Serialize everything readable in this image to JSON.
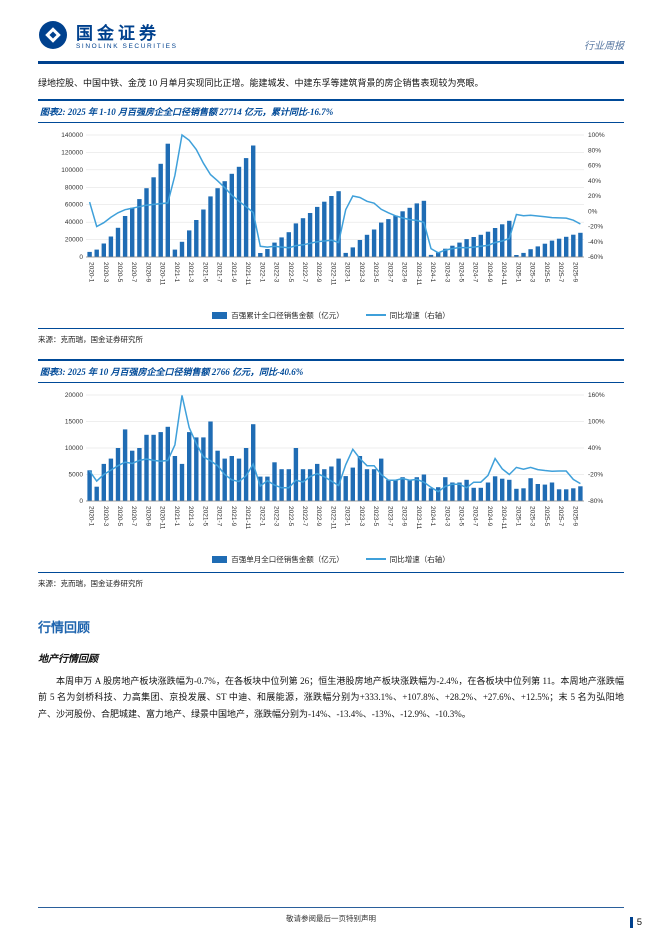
{
  "header": {
    "brand_cn": "国金证券",
    "brand_en": "SINOLINK SECURITIES",
    "report_type": "行业周报"
  },
  "intro": "绿地控股、中国中铁、金茂 10 月单月实现同比正增。能建城发、中建东孚等建筑背景的房企销售表现较为亮眼。",
  "figures": [
    {
      "source": "来源：克而瑞，国金证券研究所"
    },
    {
      "source": "来源：克而瑞，国金证券研究所"
    }
  ],
  "market_review": {
    "title": "行情回顾",
    "subtitle": "地产行情回顾",
    "paragraph": "本周申万 A 股房地产板块涨跌幅为-0.7%，在各板块中位列第 26；恒生港股房地产板块涨跌幅为-2.4%，在各板块中位列第 11。本周地产涨跌幅前 5 名为剑桥科技、力高集团、京投发展、ST 中迪、和展能源，涨跌幅分别为+333.1%、+107.8%、+28.2%、+27.6%、+12.5%；末 5 名为弘阳地产、沙河股份、合肥城建、富力地产、绿景中国地产，涨跌幅分别为-14%、-13.4%、-13%、-12.9%、-10.3%。"
  },
  "footer": {
    "disclaimer": "敬请参阅最后一页特别声明",
    "page": "5"
  },
  "colors": {
    "bar": "#1F6CB4",
    "line": "#3FA0DA",
    "accent": "#00418E"
  },
  "chart_data": [
    {
      "type": "bar+line",
      "title": "图表2: 2025 年 1-10 月百强房企全口径销售额 27714 亿元，累计同比-16.7%",
      "left_axis": {
        "min": 0,
        "max": 140000,
        "step": 20000
      },
      "right_axis": {
        "min": -60,
        "max": 100,
        "step": 20,
        "unit": "%"
      },
      "x_labels": [
        "2020-1",
        "2020-2",
        "2020-3",
        "2020-4",
        "2020-5",
        "2020-6",
        "2020-7",
        "2020-8",
        "2020-9",
        "2020-10",
        "2020-11",
        "2020-12",
        "2021-1",
        "2021-2",
        "2021-3",
        "2021-4",
        "2021-5",
        "2021-6",
        "2021-7",
        "2021-8",
        "2021-9",
        "2021-10",
        "2021-11",
        "2021-12",
        "2022-1",
        "2022-2",
        "2022-3",
        "2022-4",
        "2022-5",
        "2022-6",
        "2022-7",
        "2022-8",
        "2022-9",
        "2022-10",
        "2022-11",
        "2022-12",
        "2023-1",
        "2023-2",
        "2023-3",
        "2023-4",
        "2023-5",
        "2023-6",
        "2023-7",
        "2023-8",
        "2023-9",
        "2023-10",
        "2023-11",
        "2023-12",
        "2024-1",
        "2024-2",
        "2024-3",
        "2024-4",
        "2024-5",
        "2024-6",
        "2024-7",
        "2024-8",
        "2024-9",
        "2024-10",
        "2024-11",
        "2024-12",
        "2025-1",
        "2025-2",
        "2025-3",
        "2025-4",
        "2025-5",
        "2025-6",
        "2025-7",
        "2025-8",
        "2025-9",
        "2025-10"
      ],
      "bars": {
        "name": "百强累计全口径销售金额（亿元）",
        "values": [
          5800,
          8500,
          15500,
          23500,
          33500,
          47000,
          56500,
          66500,
          79000,
          91500,
          107000,
          130000,
          8500,
          17500,
          30500,
          42500,
          54500,
          69500,
          79000,
          87000,
          95500,
          103500,
          113500,
          128000,
          4600,
          9200,
          16500,
          22500,
          28500,
          38500,
          44500,
          50500,
          57500,
          63500,
          70000,
          75500,
          4700,
          11000,
          19500,
          25500,
          31500,
          39500,
          43500,
          47500,
          52500,
          56500,
          61500,
          64500,
          2400,
          5000,
          9500,
          13000,
          16500,
          20500,
          23000,
          25500,
          29000,
          33300,
          37500,
          41500,
          2300,
          4700,
          9000,
          12200,
          15300,
          18800,
          21000,
          23200,
          25600,
          27714
        ]
      },
      "line": {
        "name": "同比增速（右轴）",
        "values": [
          12,
          -20,
          -15,
          -8,
          -2,
          2,
          4,
          6,
          8,
          9,
          10,
          11,
          47,
          100,
          93,
          81,
          63,
          48,
          40,
          31,
          21,
          13,
          6,
          -1.5,
          -46,
          -47,
          -46,
          -47,
          -48,
          -45,
          -44,
          -42,
          -40,
          -39,
          -38,
          -41,
          2,
          20,
          18,
          13,
          10.5,
          2.6,
          -2,
          -6,
          -8.7,
          -11,
          -12,
          -14.6,
          -49,
          -54.5,
          -51,
          -49,
          -47.6,
          -48,
          -47,
          -46,
          -44.8,
          -41,
          -39,
          -35.7,
          -4.2,
          -6,
          -5.3,
          -6.2,
          -7.3,
          -8.3,
          -8.7,
          -9,
          -11.7,
          -16.7
        ]
      }
    },
    {
      "type": "bar+line",
      "title": "图表3: 2025 年 10 月百强房企全口径销售额 2766 亿元，同比-40.6%",
      "left_axis": {
        "min": 0,
        "max": 20000,
        "step": 5000
      },
      "right_axis": {
        "min": -80,
        "max": 160,
        "step": 60,
        "unit": "%"
      },
      "x_labels": [
        "2020-1",
        "2020-2",
        "2020-3",
        "2020-4",
        "2020-5",
        "2020-6",
        "2020-7",
        "2020-8",
        "2020-9",
        "2020-10",
        "2020-11",
        "2020-12",
        "2021-1",
        "2021-2",
        "2021-3",
        "2021-4",
        "2021-5",
        "2021-6",
        "2021-7",
        "2021-8",
        "2021-9",
        "2021-10",
        "2021-11",
        "2021-12",
        "2022-1",
        "2022-2",
        "2022-3",
        "2022-4",
        "2022-5",
        "2022-6",
        "2022-7",
        "2022-8",
        "2022-9",
        "2022-10",
        "2022-11",
        "2022-12",
        "2023-1",
        "2023-2",
        "2023-3",
        "2023-4",
        "2023-5",
        "2023-6",
        "2023-7",
        "2023-8",
        "2023-9",
        "2023-10",
        "2023-11",
        "2023-12",
        "2024-1",
        "2024-2",
        "2024-3",
        "2024-4",
        "2024-5",
        "2024-6",
        "2024-7",
        "2024-8",
        "2024-9",
        "2024-10",
        "2024-11",
        "2024-12",
        "2025-1",
        "2025-2",
        "2025-3",
        "2025-4",
        "2025-5",
        "2025-6",
        "2025-7",
        "2025-8",
        "2025-9",
        "2025-10"
      ],
      "bars": {
        "name": "百强单月全口径销售金额（亿元）",
        "values": [
          5800,
          2700,
          7000,
          8000,
          10000,
          13500,
          9500,
          10000,
          12500,
          12500,
          13000,
          14000,
          8500,
          7000,
          13000,
          12000,
          12000,
          15000,
          9500,
          8000,
          8500,
          8000,
          10000,
          14500,
          4600,
          4600,
          7300,
          6000,
          6000,
          10000,
          6000,
          6000,
          7000,
          6000,
          6500,
          8000,
          4700,
          6300,
          8500,
          6000,
          6000,
          8000,
          4000,
          4000,
          4500,
          4000,
          4500,
          5000,
          2400,
          2600,
          4500,
          3500,
          3500,
          4000,
          2500,
          2500,
          3500,
          4655,
          4200,
          4000,
          2300,
          2400,
          4300,
          3200,
          3100,
          3500,
          2200,
          2200,
          2400,
          2766
        ]
      },
      "line": {
        "name": "同比增速（右轴）",
        "values": [
          -12,
          -35,
          -20,
          -10,
          0,
          8,
          5,
          12,
          15,
          12,
          10,
          12,
          47,
          159,
          86,
          50,
          20,
          11,
          0,
          -20,
          -32,
          -36,
          -23,
          3.6,
          -46,
          -34,
          -44,
          -50,
          -50,
          -33,
          -37,
          -25,
          -18,
          -25,
          -35,
          -45,
          2,
          37,
          16,
          0,
          0,
          -20,
          -33,
          -33,
          -29,
          -33,
          -31,
          -37.5,
          -49,
          -59,
          -47,
          -42,
          -42,
          -50,
          -37.5,
          -37.5,
          -22,
          16,
          -7,
          -20,
          -4,
          -8,
          -4,
          -9,
          -11,
          -12.5,
          -12,
          -12,
          -31,
          -40.6
        ]
      }
    }
  ]
}
